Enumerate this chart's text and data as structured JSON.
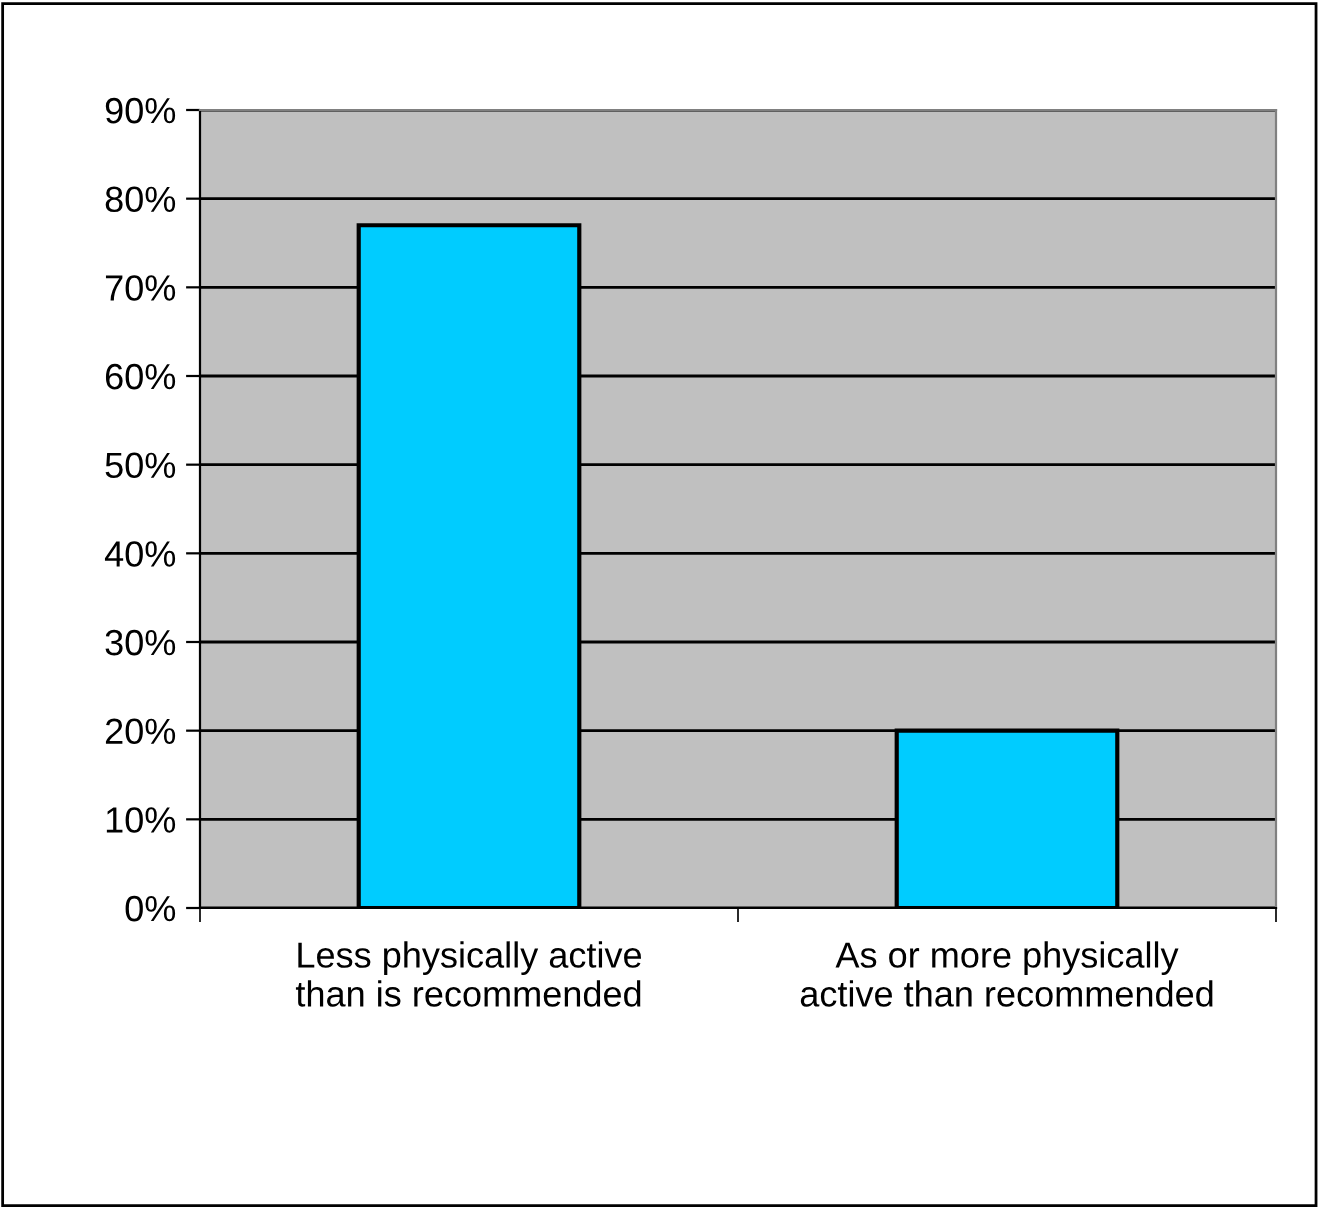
{
  "chart_data": {
    "type": "bar",
    "categories": [
      "Less physically active\nthan is recommended",
      "As or more physically\nactive than recommended"
    ],
    "values": [
      77,
      20
    ],
    "color": "#00ccff",
    "ylim": [
      0,
      90
    ],
    "yticks": [
      {
        "value": 0,
        "label": "0%"
      },
      {
        "value": 10,
        "label": "10%"
      },
      {
        "value": 20,
        "label": "20%"
      },
      {
        "value": 30,
        "label": "30%"
      },
      {
        "value": 40,
        "label": "40%"
      },
      {
        "value": 50,
        "label": "50%"
      },
      {
        "value": 60,
        "label": "60%"
      },
      {
        "value": 70,
        "label": "70%"
      },
      {
        "value": 80,
        "label": "80%"
      },
      {
        "value": 90,
        "label": "90%"
      }
    ],
    "grid": "y",
    "legend": false
  }
}
